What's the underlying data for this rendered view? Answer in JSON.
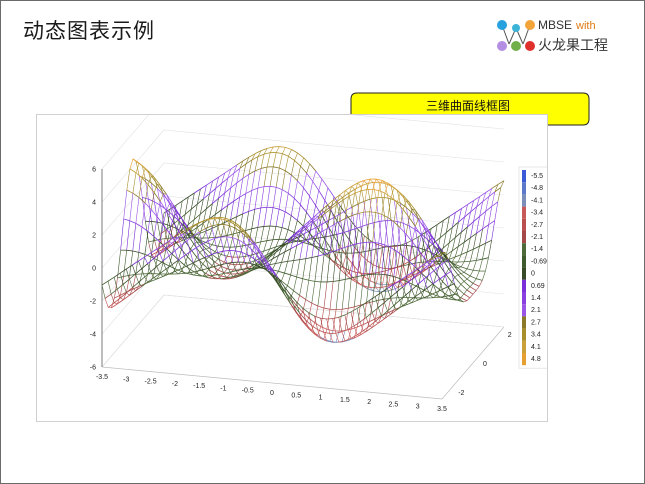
{
  "slide": {
    "title": "动态图表示例",
    "logo": {
      "line1": "MBSE",
      "with": "with",
      "line2": "火龙果工程"
    },
    "callout": "三维曲面线框图"
  },
  "colors": {
    "callout_fill": "#ffff00",
    "colormap": [
      "#3a5ad8",
      "#5d79c9",
      "#7d8fb8",
      "#c85a5a",
      "#b9504f",
      "#a54848",
      "#4f6a3a",
      "#3f5a2c",
      "#374a28",
      "#7a2fd8",
      "#8a3fe0",
      "#9a55e6",
      "#8a7a2a",
      "#a88f2c",
      "#c9a03a",
      "#e6a030"
    ]
  },
  "chart_data": {
    "type": "surface-wireframe",
    "x_range": [
      -3.5,
      3.5
    ],
    "y_range": [
      -2.5,
      2.5
    ],
    "z_range": [
      -6,
      6
    ],
    "x_ticks": [
      "-3.5",
      "-3",
      "-2.5",
      "-2",
      "-1.5",
      "-1",
      "-0.5",
      "0",
      "0.5",
      "1",
      "1.5",
      "2",
      "2.5",
      "3",
      "3.5"
    ],
    "y_ticks": [
      "-2",
      "0",
      "2"
    ],
    "z_ticks": [
      "-6",
      "-4",
      "-2",
      "0",
      "2",
      "4",
      "6"
    ],
    "colorbar_labels": [
      "-5.5",
      "-4.8",
      "-4.1",
      "-3.4",
      "-2.7",
      "-2.1",
      "-1.4",
      "-0.69",
      "0",
      "0.69",
      "1.4",
      "2.1",
      "2.7",
      "3.4",
      "4.1",
      "4.8"
    ],
    "grid": true
  }
}
